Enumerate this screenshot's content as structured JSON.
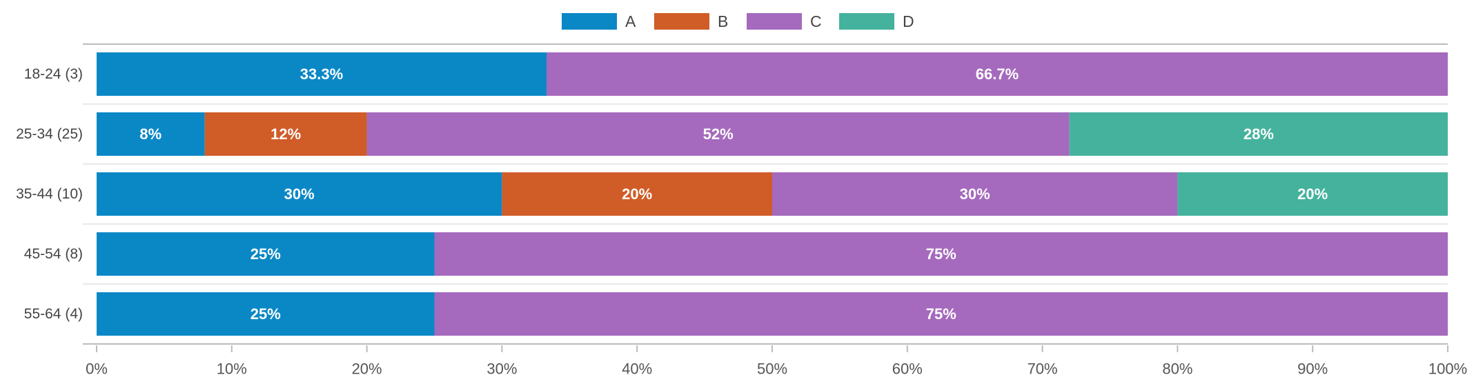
{
  "chart_data": {
    "type": "bar",
    "orientation": "horizontal",
    "stacked": true,
    "normalized": true,
    "categories": [
      "18-24 (3)",
      "25-34 (25)",
      "35-44 (10)",
      "45-54 (8)",
      "55-64 (4)"
    ],
    "series": [
      {
        "name": "A",
        "color": "#0a88c6",
        "values": [
          33.3,
          8,
          30,
          25,
          25
        ]
      },
      {
        "name": "B",
        "color": "#d05c28",
        "values": [
          0,
          12,
          20,
          0,
          0
        ]
      },
      {
        "name": "C",
        "color": "#a56abd",
        "values": [
          66.7,
          52,
          30,
          75,
          75
        ]
      },
      {
        "name": "D",
        "color": "#45b29d",
        "values": [
          0,
          28,
          20,
          0,
          0
        ]
      }
    ],
    "data_labels": [
      [
        "33.3%",
        "",
        "66.7%",
        ""
      ],
      [
        "8%",
        "12%",
        "52%",
        "28%"
      ],
      [
        "30%",
        "20%",
        "30%",
        "20%"
      ],
      [
        "25%",
        "",
        "75%",
        ""
      ],
      [
        "25%",
        "",
        "75%",
        ""
      ]
    ],
    "x_ticks": [
      "0%",
      "10%",
      "20%",
      "30%",
      "40%",
      "50%",
      "60%",
      "70%",
      "80%",
      "90%",
      "100%"
    ],
    "xlim": [
      0,
      100
    ],
    "title": "",
    "xlabel": "",
    "ylabel": "",
    "legend_position": "top-center",
    "grid": true
  }
}
